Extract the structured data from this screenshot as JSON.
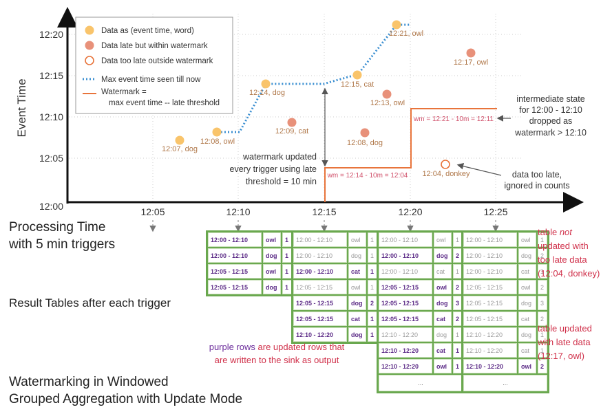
{
  "axes": {
    "y_label": "Event Time",
    "y_ticks": [
      "12:20",
      "12:15",
      "12:10",
      "12:05",
      "12:00"
    ],
    "x_ticks": [
      "12:05",
      "12:10",
      "12:15",
      "12:20",
      "12:25"
    ],
    "x_label_line1": "Processing Time",
    "x_label_line2": "with 5 min triggers"
  },
  "legend": {
    "data": "Data as (event time, word)",
    "late": "Data late but within watermark",
    "too_late": "Data too late outside watermark",
    "max_event": "Max event time seen till now",
    "watermark_line1": "Watermark =",
    "watermark_line2": "max event time -- late threshold"
  },
  "points": [
    {
      "label": "12:07, dog",
      "kind": "data"
    },
    {
      "label": "12:08, owl",
      "kind": "data"
    },
    {
      "label": "12:14, dog",
      "kind": "data"
    },
    {
      "label": "12:09, cat",
      "kind": "late"
    },
    {
      "label": "12:15, cat",
      "kind": "data"
    },
    {
      "label": "12:08, dog",
      "kind": "late"
    },
    {
      "label": "12:13, owl",
      "kind": "late"
    },
    {
      "label": "12:21, owl",
      "kind": "data"
    },
    {
      "label": "12:04, donkey",
      "kind": "too_late"
    },
    {
      "label": "12:17, owl",
      "kind": "late"
    }
  ],
  "annotations": {
    "wm1": "wm = 12:14 - 10m = 12:04",
    "wm2": "wm = 12:21 - 10m = 12:11",
    "wm_updated_1": "watermark updated",
    "wm_updated_2": "every trigger using late",
    "wm_updated_3": "threshold = 10 min",
    "intermediate_1": "intermediate state",
    "intermediate_2": "for 12:00 - 12:10",
    "intermediate_3": "dropped as",
    "intermediate_4": "watermark > 12:10",
    "too_late_1": "data too late,",
    "too_late_2": "ignored in counts"
  },
  "result_tables_caption": "Result Tables after each trigger",
  "tables": [
    {
      "rows": [
        {
          "window": "12:00 - 12:10",
          "word": "owl",
          "count": "1",
          "state": "upd"
        },
        {
          "window": "12:00 - 12:10",
          "word": "dog",
          "count": "1",
          "state": "upd"
        },
        {
          "window": "12:05 - 12:15",
          "word": "owl",
          "count": "1",
          "state": "upd"
        },
        {
          "window": "12:05 - 12:15",
          "word": "dog",
          "count": "1",
          "state": "upd"
        }
      ]
    },
    {
      "rows": [
        {
          "window": "12:00 - 12:10",
          "word": "owl",
          "count": "1",
          "state": "old"
        },
        {
          "window": "12:00 - 12:10",
          "word": "dog",
          "count": "1",
          "state": "old"
        },
        {
          "window": "12:00 - 12:10",
          "word": "cat",
          "count": "1",
          "state": "upd"
        },
        {
          "window": "12:05 - 12:15",
          "word": "owl",
          "count": "1",
          "state": "old"
        },
        {
          "window": "12:05 - 12:15",
          "word": "dog",
          "count": "2",
          "state": "upd"
        },
        {
          "window": "12:05 - 12:15",
          "word": "cat",
          "count": "1",
          "state": "upd"
        },
        {
          "window": "12:10 - 12:20",
          "word": "dog",
          "count": "1",
          "state": "upd"
        }
      ]
    },
    {
      "rows": [
        {
          "window": "12:00 - 12:10",
          "word": "owl",
          "count": "1",
          "state": "old"
        },
        {
          "window": "12:00 - 12:10",
          "word": "dog",
          "count": "2",
          "state": "upd"
        },
        {
          "window": "12:00 - 12:10",
          "word": "cat",
          "count": "1",
          "state": "old"
        },
        {
          "window": "12:05 - 12:15",
          "word": "owl",
          "count": "2",
          "state": "upd"
        },
        {
          "window": "12:05 - 12:15",
          "word": "dog",
          "count": "3",
          "state": "upd"
        },
        {
          "window": "12:05 - 12:15",
          "word": "cat",
          "count": "2",
          "state": "upd"
        },
        {
          "window": "12:10 - 12:20",
          "word": "dog",
          "count": "1",
          "state": "old"
        },
        {
          "window": "12:10 - 12:20",
          "word": "cat",
          "count": "1",
          "state": "upd"
        },
        {
          "window": "12:10 - 12:20",
          "word": "owl",
          "count": "1",
          "state": "upd"
        },
        {
          "window": "...",
          "word": "",
          "count": "",
          "state": "blank"
        }
      ]
    },
    {
      "rows": [
        {
          "window": "12:00 - 12:10",
          "word": "owl",
          "count": "1",
          "state": "old"
        },
        {
          "window": "12:00 - 12:10",
          "word": "dog",
          "count": "2",
          "state": "old"
        },
        {
          "window": "12:00 - 12:10",
          "word": "cat",
          "count": "1",
          "state": "old"
        },
        {
          "window": "12:05 - 12:15",
          "word": "owl",
          "count": "2",
          "state": "old"
        },
        {
          "window": "12:05 - 12:15",
          "word": "dog",
          "count": "3",
          "state": "old"
        },
        {
          "window": "12:05 - 12:15",
          "word": "cat",
          "count": "2",
          "state": "old"
        },
        {
          "window": "12:10 - 12:20",
          "word": "dog",
          "count": "1",
          "state": "old"
        },
        {
          "window": "12:10 - 12:20",
          "word": "cat",
          "count": "1",
          "state": "old"
        },
        {
          "window": "12:10 - 12:20",
          "word": "owl",
          "count": "2",
          "state": "upd"
        },
        {
          "window": "...",
          "word": "",
          "count": "",
          "state": "blank"
        }
      ]
    }
  ],
  "notes": {
    "not_updated_1": "table ",
    "not_updated_em": "not",
    "not_updated_2": "updated with",
    "not_updated_3": "too late data",
    "not_updated_4": "(12:04, donkey)",
    "updated_1": "table updated",
    "updated_2": "with late data",
    "updated_3": "(12:17, owl)",
    "purple_1a": "purple rows",
    "purple_1b": " are updated rows that",
    "purple_2": "are written to the sink as output"
  },
  "title": {
    "w1": "Watermarking",
    "w2": " in ",
    "w3": "Windowed",
    "w4": "Grouped Aggregation",
    "w5": " with ",
    "w6": "Update Mode"
  },
  "colors": {
    "data_point": "#f9c46b",
    "late_point": "#e8917a",
    "too_late_stroke": "#e8743b",
    "max_event_line": "#3b8fd1",
    "watermark_line": "#e8743b",
    "table_border": "#6aa84f",
    "updated_row_text": "#5b2a86",
    "note_red": "#d0304a"
  }
}
